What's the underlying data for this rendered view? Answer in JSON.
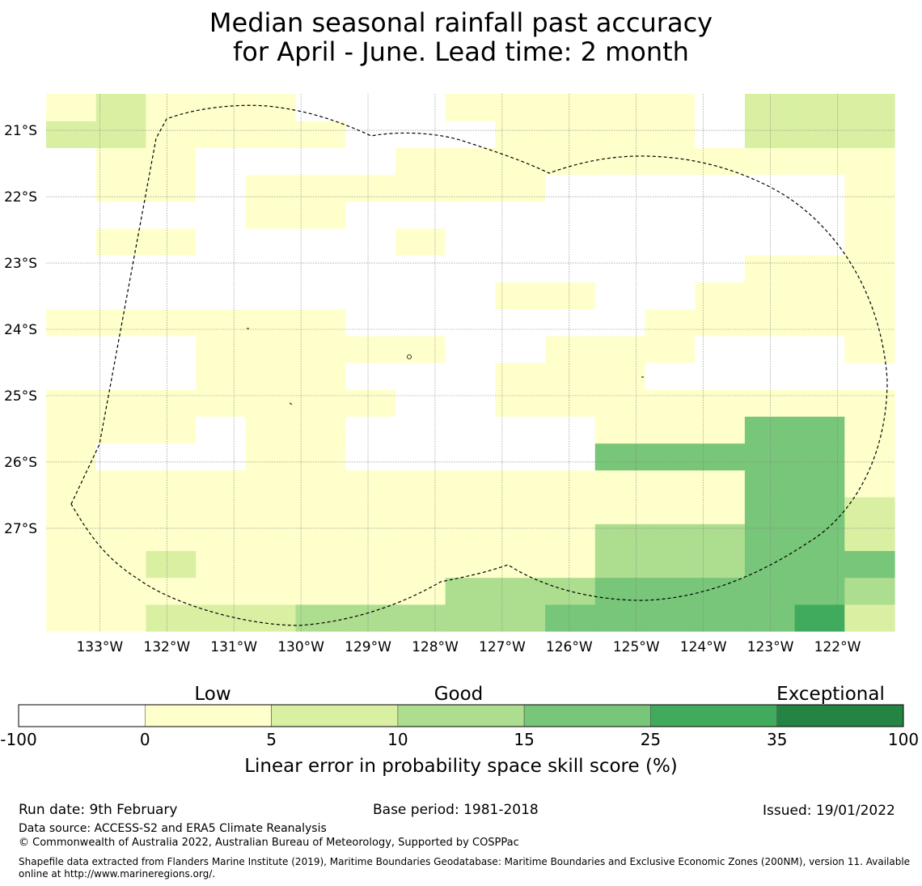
{
  "title": {
    "line1": "Median seasonal rainfall past accuracy",
    "line2": "for April - June. Lead time: 2 month"
  },
  "map": {
    "lon_range": [
      -133.8,
      -121.15
    ],
    "lat_range": [
      -28.55,
      -20.45
    ],
    "cell_size_deg": 0.5625,
    "lon_tick_labels": [
      "133°W",
      "132°W",
      "131°W",
      "130°W",
      "129°W",
      "128°W",
      "127°W",
      "126°W",
      "125°W",
      "124°W",
      "123°W",
      "122°W"
    ],
    "lon_ticks": [
      -133,
      -132,
      -131,
      -130,
      -129,
      -128,
      -127,
      -126,
      -125,
      -124,
      -123,
      -122
    ],
    "lat_tick_labels": [
      "21°S",
      "22°S",
      "23°S",
      "24°S",
      "25°S",
      "26°S",
      "27°S"
    ],
    "lat_ticks": [
      -21,
      -22,
      -23,
      -24,
      -25,
      -26,
      -27
    ],
    "grid_rows_category": [
      "11222333334444452",
      "11111111333444443",
      "11211111111333444",
      "11111111111333442",
      "11111111111111442",
      "11111111111111441",
      "10001100000444441",
      "11101100000111441",
      "11111110011111111",
      "00011100011100000",
      "00011111001110001",
      "11111100000011111",
      "00000000011001111",
      "00000000000000111",
      "01100001000000001",
      "00001100000000001",
      "01101111110000001",
      "01100001111111111",
      "22111100011110222",
      "12111000111110222"
    ],
    "grid_note": "category index per cell: 0=-100..0, 1=0..5, 2=5..10, 3=10..15, 4=15..25, 5=25..35; rows listed from south to north, columns west to east"
  },
  "colors": {
    "bins": [
      "#ffffff",
      "#ffffcc",
      "#d9f0a3",
      "#addd8e",
      "#78c679",
      "#41ab5d",
      "#238443"
    ],
    "eez_line": "#000000"
  },
  "colorbar": {
    "labels": [
      "Low",
      "Good",
      "Exceptional"
    ],
    "ticks": [
      "-100",
      "0",
      "5",
      "10",
      "15",
      "25",
      "35",
      "100"
    ],
    "axis_label": "Linear error in probability space skill score (%)"
  },
  "footer": {
    "run_date": "Run date: 9th February",
    "base_period": "Base period: 1981-2018",
    "issued": "Issued: 19/01/2022",
    "data_source": "Data source: ACCESS-S2 and ERA5 Climate Reanalysis",
    "copyright": "© Commonwealth of Australia 2022, Australian Bureau of Meteorology, Supported by COSPPac",
    "shapefile": "Shapefile data extracted from Flanders Marine Institute (2019), Maritime Boundaries Geodatabase: Maritime Boundaries and Exclusive Economic Zones (200NM), version 11. Available online at http://www.marineregions.org/."
  }
}
